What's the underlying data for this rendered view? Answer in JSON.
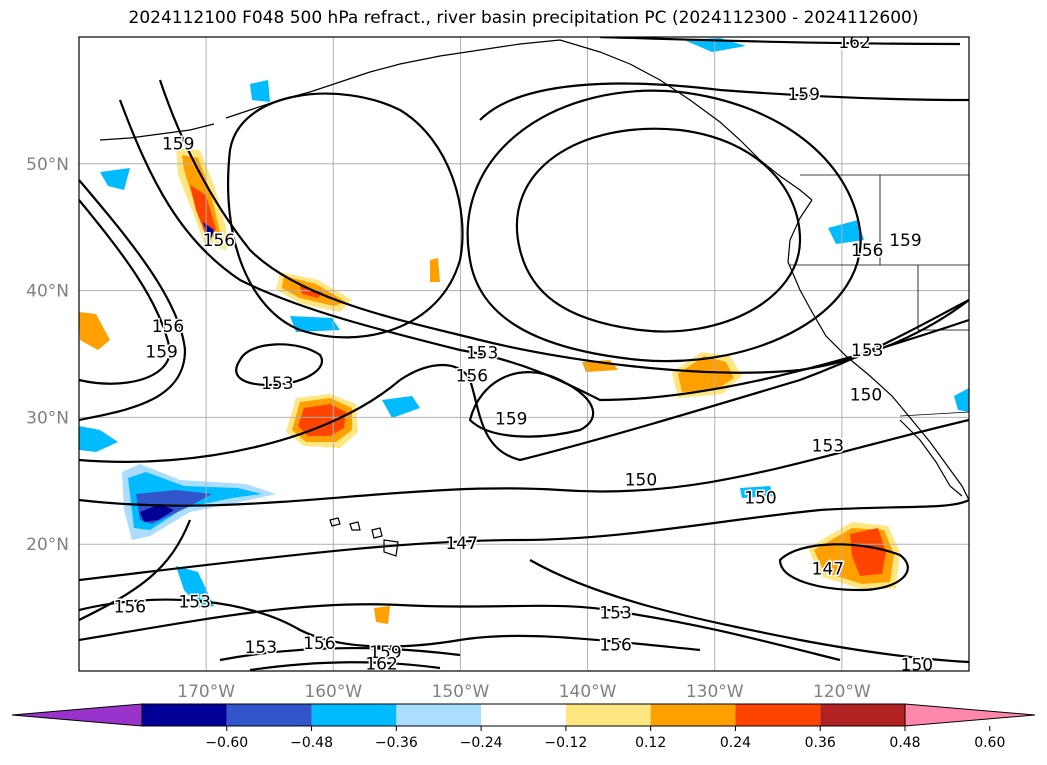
{
  "title": "2024112100 F048 500 hPa refract., river basin precipitation PC (2024112300 - 2024112600)",
  "chart_data": {
    "type": "map",
    "title": "2024112100 F048 500 hPa refract., river basin precipitation PC (2024112300 - 2024112600)",
    "lat_ticks": [
      "20°N",
      "30°N",
      "40°N",
      "50°N"
    ],
    "lon_ticks": [
      "170°W",
      "160°W",
      "150°W",
      "140°W",
      "130°W",
      "120°W"
    ],
    "extent": {
      "lon": [
        -180,
        -110
      ],
      "lat": [
        10,
        60
      ]
    },
    "grid": true,
    "contour_labels": [
      {
        "text": "162",
        "lon": -119,
        "lat": 59.6
      },
      {
        "text": "159",
        "lon": -123,
        "lat": 55.5
      },
      {
        "text": "159",
        "lon": -172.2,
        "lat": 51.6
      },
      {
        "text": "156",
        "lon": -169,
        "lat": 44
      },
      {
        "text": "156",
        "lon": -118,
        "lat": 43.2
      },
      {
        "text": "159",
        "lon": -115,
        "lat": 44
      },
      {
        "text": "156",
        "lon": -173,
        "lat": 37.2
      },
      {
        "text": "159",
        "lon": -173.5,
        "lat": 35.2
      },
      {
        "text": "153",
        "lon": -148.3,
        "lat": 35.1
      },
      {
        "text": "156",
        "lon": -149.1,
        "lat": 33.3
      },
      {
        "text": "153",
        "lon": -164.4,
        "lat": 32.7
      },
      {
        "text": "159",
        "lon": -146,
        "lat": 29.9
      },
      {
        "text": "153",
        "lon": -118,
        "lat": 35.3
      },
      {
        "text": "150",
        "lon": -118.1,
        "lat": 31.8
      },
      {
        "text": "153",
        "lon": -121.1,
        "lat": 27.8
      },
      {
        "text": "150",
        "lon": -135.8,
        "lat": 25.1
      },
      {
        "text": "150",
        "lon": -126.4,
        "lat": 23.7
      },
      {
        "text": "147",
        "lon": -149.9,
        "lat": 20.1
      },
      {
        "text": "147",
        "lon": -121.1,
        "lat": 18.1
      },
      {
        "text": "156",
        "lon": -176,
        "lat": 15.1
      },
      {
        "text": "153",
        "lon": -170.9,
        "lat": 15.5
      },
      {
        "text": "153",
        "lon": -137.8,
        "lat": 14.6
      },
      {
        "text": "156",
        "lon": -137.8,
        "lat": 12.1
      },
      {
        "text": "153",
        "lon": -165.7,
        "lat": 11.9
      },
      {
        "text": "156",
        "lon": -161.1,
        "lat": 12.2
      },
      {
        "text": "159",
        "lon": -155.9,
        "lat": 11.5
      },
      {
        "text": "162",
        "lon": -156.2,
        "lat": 10.6
      },
      {
        "text": "150",
        "lon": -114.1,
        "lat": 10.5
      }
    ],
    "colorbar": {
      "ticks": [
        "−0.60",
        "−0.48",
        "−0.36",
        "−0.24",
        "−0.12",
        "0.12",
        "0.24",
        "0.36",
        "0.48",
        "0.60"
      ],
      "colors": [
        "#9933CC",
        "#000099",
        "#3355CC",
        "#00BBFF",
        "#AADDFF",
        "#FFFFFF",
        "#FFE680",
        "#FFA000",
        "#FF4400",
        "#B22222",
        "#FF88AA"
      ],
      "extend": "both"
    }
  }
}
